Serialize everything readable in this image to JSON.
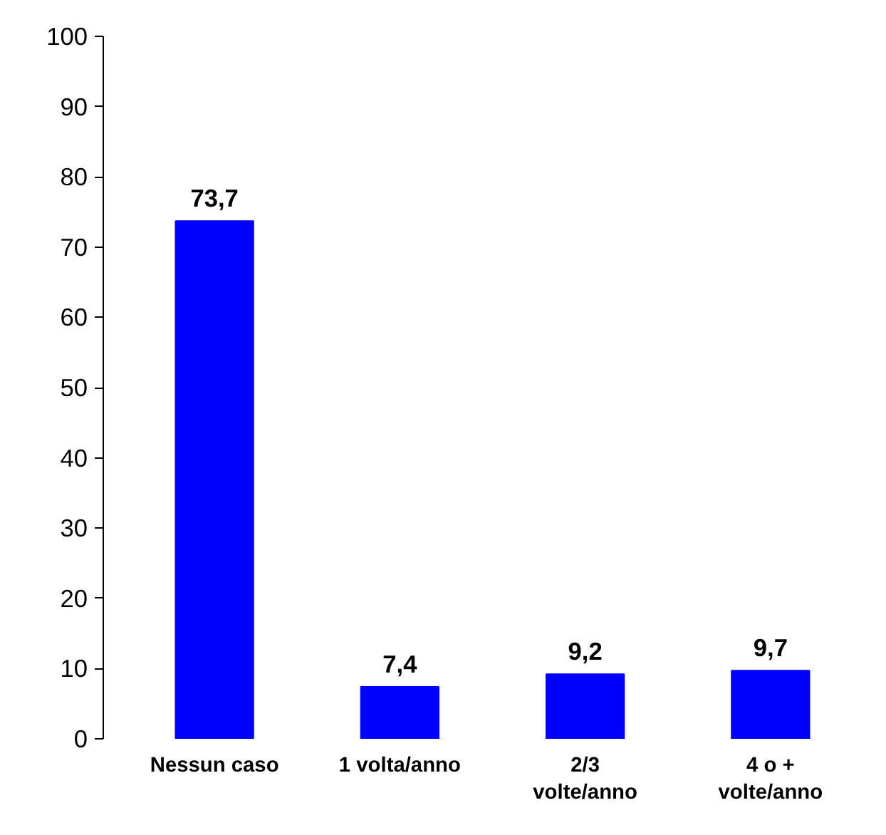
{
  "chart_data": {
    "type": "bar",
    "categories": [
      "Nessun caso",
      "1 volta/anno",
      "2/3 volte/anno",
      "4 o + volte/anno"
    ],
    "values": [
      73.7,
      7.4,
      9.2,
      9.7
    ],
    "value_labels": [
      "73,7",
      "7,4",
      "9,2",
      "9,7"
    ],
    "color": "#0000ff",
    "ylim": [
      0,
      100
    ],
    "yticks": [
      0,
      10,
      20,
      30,
      40,
      50,
      60,
      70,
      80,
      90,
      100
    ],
    "grid": false
  }
}
